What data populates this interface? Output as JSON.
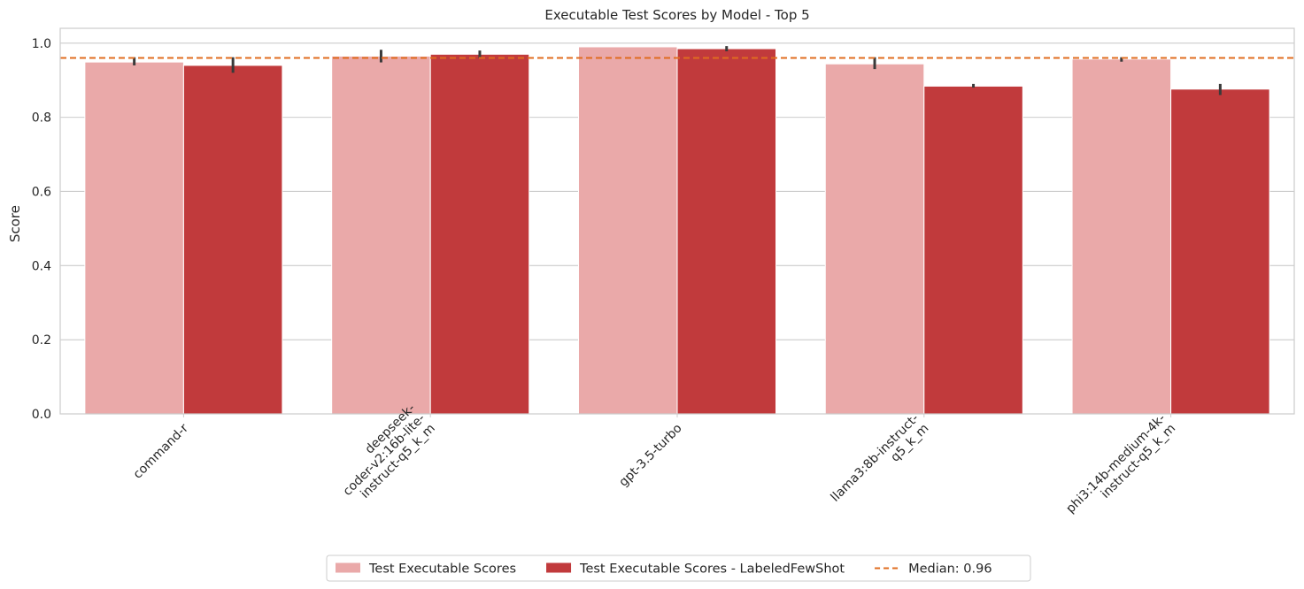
{
  "chart_data": {
    "type": "bar",
    "title": "Executable Test Scores by Model - Top 5",
    "xlabel": "",
    "ylabel": "Score",
    "ylim": [
      0,
      1.04
    ],
    "yticks": [
      "0.0",
      "0.2",
      "0.4",
      "0.6",
      "0.8",
      "1.0"
    ],
    "ytick_values": [
      0,
      0.2,
      0.4,
      0.6,
      0.8,
      1.0
    ],
    "grid": "horizontal",
    "categories": [
      "command-r",
      "deepseek-\ncoder-v2:16b-lite-\ninstruct-q5_k_m",
      "gpt-3.5-turbo",
      "llama3:8b-instruct-\nq5_k_m",
      "phi3:14b-medium-4k-\ninstruct-q5_k_m"
    ],
    "series": [
      {
        "name": "Test Executable Scores",
        "color": "#eaa9a9",
        "values": [
          0.949,
          0.965,
          0.99,
          0.944,
          0.957
        ],
        "err_low": [
          0.94,
          0.948,
          0.99,
          0.93,
          0.95
        ],
        "err_high": [
          0.962,
          0.982,
          0.99,
          0.962,
          0.962
        ]
      },
      {
        "name": "Test Executable Scores - LabeledFewShot",
        "color": "#c13a3c",
        "values": [
          0.94,
          0.97,
          0.985,
          0.884,
          0.876
        ],
        "err_low": [
          0.92,
          0.96,
          0.978,
          0.88,
          0.86
        ],
        "err_high": [
          0.962,
          0.98,
          0.992,
          0.89,
          0.89
        ]
      }
    ],
    "reference_line": {
      "label": "Median: 0.96",
      "value": 0.96,
      "color": "#e06c1f",
      "style": "dashed"
    },
    "legend_placement": "bottom-center"
  }
}
